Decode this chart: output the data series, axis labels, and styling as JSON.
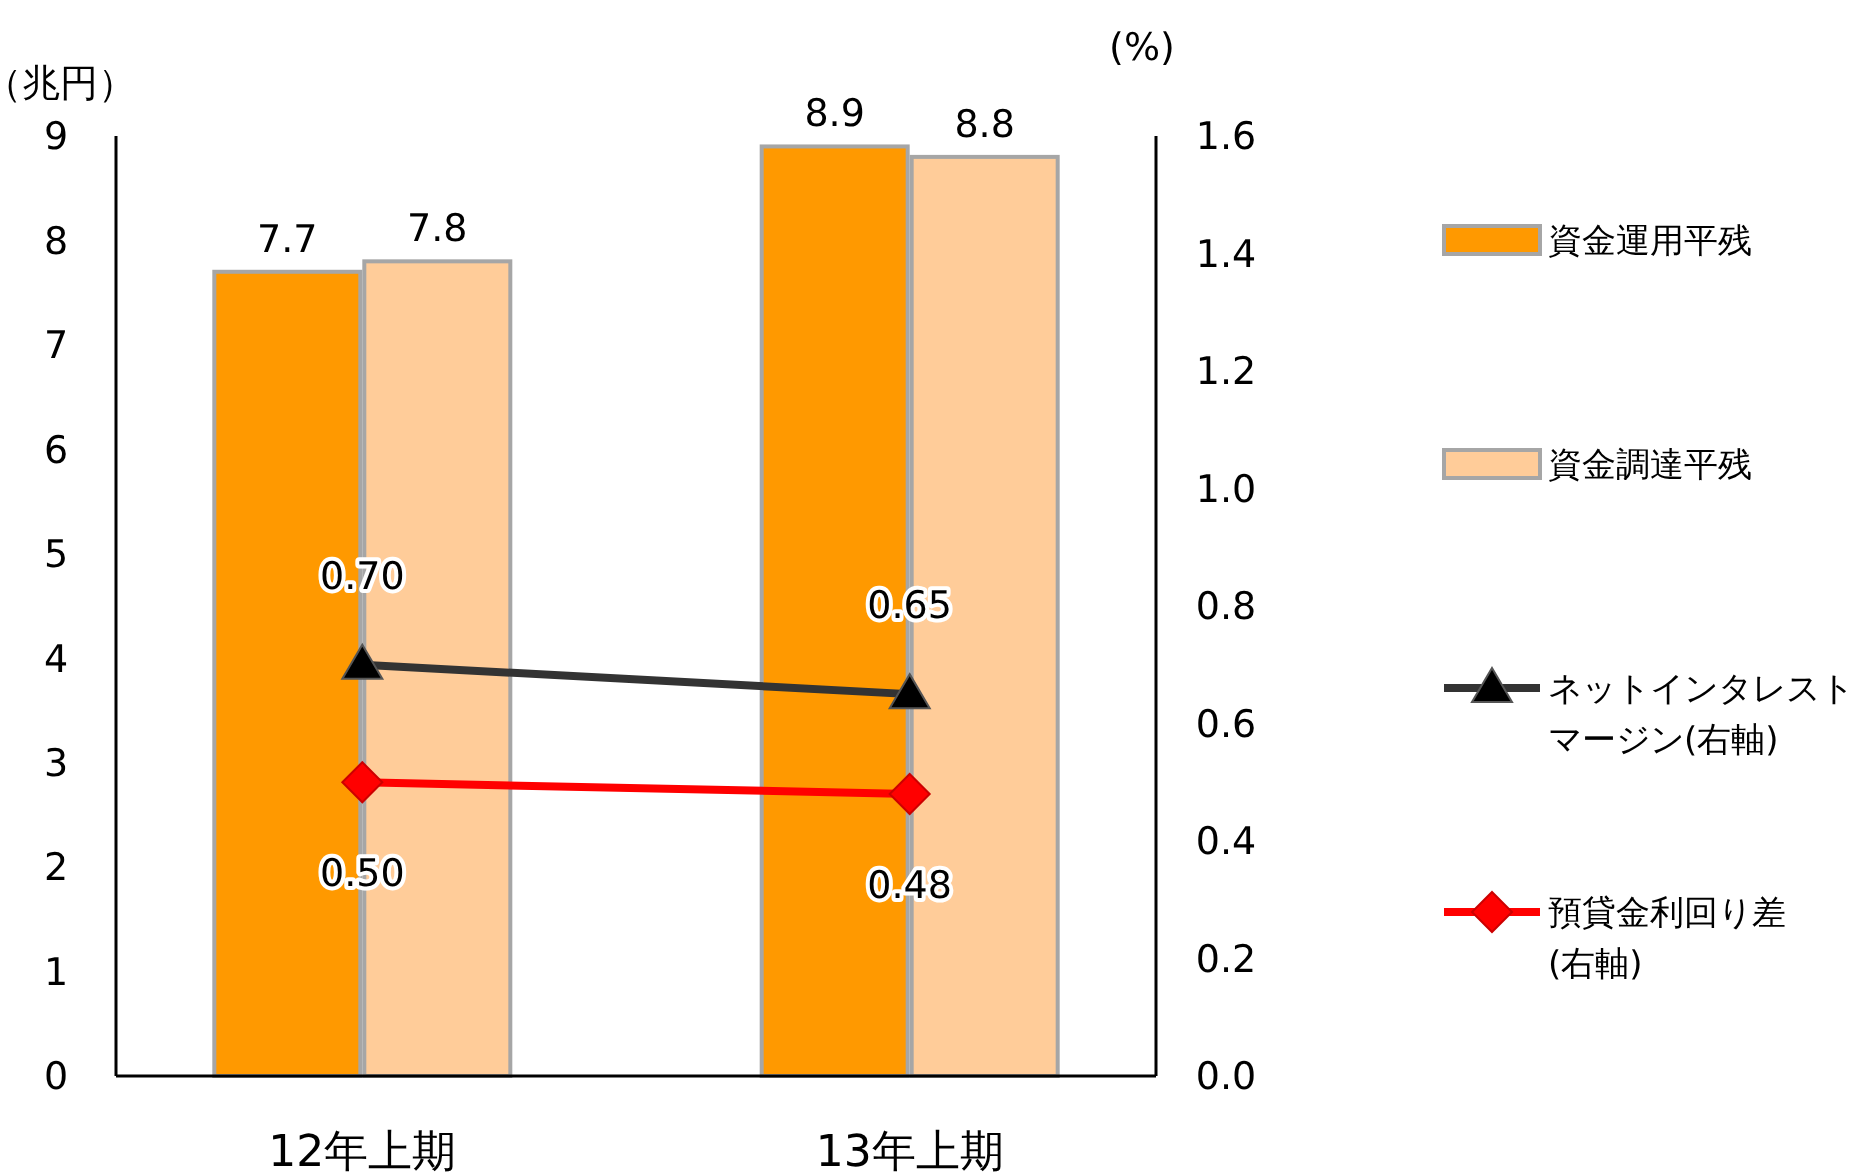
{
  "chart_data": {
    "type": "bar",
    "ylabel": "（兆円）",
    "y2label": "(%)",
    "categories": [
      "12年上期",
      "13年上期"
    ],
    "series": [
      {
        "name": "資金運用平残",
        "color": "#ff9900",
        "values": [
          7.7,
          8.9
        ],
        "value_labels": [
          "7.7",
          "8.9"
        ]
      },
      {
        "name": "資金調達平残",
        "color": "#ffcc99",
        "values": [
          7.8,
          8.8
        ],
        "value_labels": [
          "7.8",
          "8.8"
        ]
      },
      {
        "name": "ネットインタレストマージン(右軸)",
        "type": "line",
        "axis": "y2",
        "color": "#333333",
        "marker": "triangle",
        "values": [
          0.7,
          0.65
        ],
        "value_labels": [
          "0.70",
          "0.65"
        ]
      },
      {
        "name": "預貸金利回り差(右軸)",
        "type": "line",
        "axis": "y2",
        "color": "#ff0000",
        "marker": "diamond",
        "values": [
          0.5,
          0.48
        ],
        "value_labels": [
          "0.50",
          "0.48"
        ]
      }
    ],
    "ylim": [
      0,
      9
    ],
    "yticks": [
      0,
      1,
      2,
      3,
      4,
      5,
      6,
      7,
      8,
      9
    ],
    "y2lim": [
      0,
      1.6
    ],
    "y2ticks": [
      {
        "value": 0,
        "label": "0.0"
      },
      {
        "value": 0.2,
        "label": "0.2"
      },
      {
        "value": 0.4,
        "label": "0.4"
      },
      {
        "value": 0.6,
        "label": "0.6"
      },
      {
        "value": 0.8,
        "label": "0.8"
      },
      {
        "value": 1.0,
        "label": "1.0"
      },
      {
        "value": 1.2,
        "label": "1.2"
      },
      {
        "value": 1.4,
        "label": "1.4"
      },
      {
        "value": 1.6,
        "label": "1.6"
      }
    ],
    "legend": "right",
    "grid": false
  }
}
